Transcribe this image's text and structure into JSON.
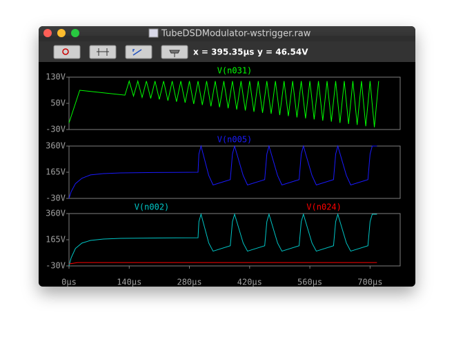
{
  "window": {
    "title": "TubeDSDModulator-wstrigger.raw"
  },
  "toolbar": {
    "cursor_x": "x = 395.35µs",
    "cursor_y": "y = 46.54V"
  },
  "chart_data": [
    {
      "type": "line",
      "xlim": [
        0,
        770
      ],
      "ylim": [
        -30,
        130
      ],
      "yticks": [
        {
          "value": -30,
          "label": "-30V"
        },
        {
          "value": 50,
          "label": "50V"
        },
        {
          "value": 130,
          "label": "130V"
        }
      ],
      "series": [
        {
          "name": "V(n031)",
          "color": "#00ff00",
          "x": [
            0,
            25,
            130,
            140,
            150,
            160,
            170,
            180,
            190,
            200,
            210,
            220,
            230,
            240,
            250,
            260,
            270,
            280,
            290,
            300,
            310,
            320,
            330,
            340,
            350,
            360,
            370,
            380,
            390,
            400,
            410,
            420,
            430,
            440,
            450,
            460,
            470,
            480,
            490,
            500,
            510,
            520,
            530,
            540,
            550,
            560,
            570,
            580,
            590,
            600,
            610,
            620,
            630,
            640,
            650,
            660,
            670,
            680,
            690,
            700,
            710,
            720
          ],
          "values": [
            -10,
            90,
            75,
            118,
            72,
            118,
            68,
            118,
            65,
            118,
            62,
            118,
            58,
            118,
            55,
            118,
            52,
            118,
            48,
            118,
            45,
            118,
            41,
            118,
            38,
            118,
            35,
            118,
            31,
            118,
            28,
            118,
            24,
            118,
            21,
            118,
            18,
            118,
            14,
            118,
            11,
            118,
            7,
            118,
            4,
            118,
            1,
            118,
            -3,
            118,
            -6,
            118,
            -10,
            118,
            -13,
            118,
            -16,
            118,
            -20,
            118,
            -23,
            118
          ]
        }
      ]
    },
    {
      "type": "line",
      "xlim": [
        0,
        770
      ],
      "ylim": [
        -30,
        360
      ],
      "yticks": [
        {
          "value": -30,
          "label": "-30V"
        },
        {
          "value": 165,
          "label": "165V"
        },
        {
          "value": 360,
          "label": "360V"
        }
      ],
      "series": [
        {
          "name": "V(n005)",
          "color": "#1a1aff",
          "x": [
            0,
            5,
            15,
            30,
            50,
            80,
            120,
            200,
            300,
            302,
            307,
            325,
            335,
            375,
            380,
            385,
            405,
            415,
            455,
            460,
            465,
            485,
            495,
            535,
            540,
            545,
            565,
            575,
            615,
            620,
            625,
            645,
            655,
            695,
            700,
            705,
            716
          ],
          "values": [
            -30,
            20,
            80,
            120,
            145,
            155,
            160,
            163,
            165,
            300,
            360,
            140,
            70,
            110,
            300,
            360,
            140,
            70,
            110,
            300,
            360,
            140,
            70,
            110,
            300,
            360,
            140,
            70,
            110,
            300,
            360,
            140,
            70,
            110,
            300,
            360,
            360
          ]
        }
      ]
    },
    {
      "type": "line",
      "xlim": [
        0,
        770
      ],
      "ylim": [
        -30,
        360
      ],
      "yticks": [
        {
          "value": -30,
          "label": "-30V"
        },
        {
          "value": 165,
          "label": "165V"
        },
        {
          "value": 360,
          "label": "360V"
        }
      ],
      "xticks": [
        {
          "value": 0,
          "label": "0µs"
        },
        {
          "value": 140,
          "label": "140µs"
        },
        {
          "value": 280,
          "label": "280µs"
        },
        {
          "value": 420,
          "label": "420µs"
        },
        {
          "value": 560,
          "label": "560µs"
        },
        {
          "value": 700,
          "label": "700µs"
        }
      ],
      "series": [
        {
          "name": "V(n002)",
          "color": "#00c8c8",
          "x": [
            0,
            5,
            15,
            30,
            50,
            80,
            120,
            200,
            300,
            302,
            307,
            325,
            335,
            375,
            380,
            385,
            405,
            415,
            455,
            460,
            465,
            485,
            495,
            535,
            540,
            545,
            565,
            575,
            615,
            620,
            625,
            645,
            655,
            695,
            700,
            705,
            716
          ],
          "values": [
            -30,
            30,
            100,
            140,
            160,
            170,
            175,
            178,
            180,
            300,
            355,
            140,
            80,
            120,
            300,
            355,
            140,
            80,
            120,
            300,
            355,
            140,
            80,
            120,
            300,
            355,
            140,
            80,
            120,
            300,
            355,
            140,
            80,
            120,
            300,
            355,
            355
          ]
        },
        {
          "name": "V(n024)",
          "color": "#ff0000",
          "x": [
            0,
            20,
            100,
            300,
            500,
            716
          ],
          "values": [
            -15,
            -5,
            -5,
            -5,
            -5,
            -5
          ]
        }
      ]
    }
  ]
}
